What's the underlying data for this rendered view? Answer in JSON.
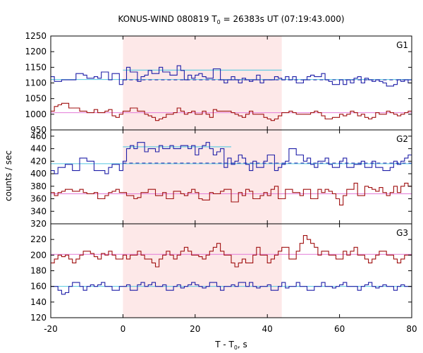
{
  "chart_data": {
    "type": "line",
    "title": "KONUS-WIND 080819 T",
    "title_sub": "0",
    "title_rest": " = 26383s UT (07:19:43.000)",
    "xlabel_main": "T - T",
    "xlabel_sub": "0",
    "xlabel_rest": ", s",
    "ylabel": "counts / sec",
    "xlim": [
      -20,
      80
    ],
    "xticks": [
      -20,
      0,
      20,
      40,
      60,
      80
    ],
    "shade": [
      0,
      44
    ],
    "colors": {
      "blue": "#1f1fa8",
      "red": "#a01010",
      "cyan": "#55c8e0",
      "pink": "#e27ad8",
      "shade": "#fde8e8"
    },
    "panels": [
      {
        "label": "G1",
        "ylim": [
          950,
          1250
        ],
        "yticks": [
          950,
          1000,
          1050,
          1100,
          1150,
          1200,
          1250
        ],
        "step": 2,
        "blue": [
          1120,
          1105,
          1105,
          1110,
          1110,
          1110,
          1110,
          1130,
          1130,
          1125,
          1115,
          1115,
          1120,
          1115,
          1135,
          1135,
          1110,
          1130,
          1130,
          1095,
          1110,
          1150,
          1135,
          1135,
          1105,
          1120,
          1125,
          1140,
          1130,
          1130,
          1150,
          1135,
          1135,
          1125,
          1125,
          1155,
          1140,
          1110,
          1125,
          1115,
          1125,
          1130,
          1120,
          1115,
          1115,
          1145,
          1145,
          1110,
          1100,
          1110,
          1120,
          1110,
          1100,
          1115,
          1110,
          1105,
          1110,
          1125,
          1100,
          1110,
          1110,
          1110,
          1120,
          1115,
          1110,
          1120,
          1110,
          1120,
          1100,
          1100,
          1110,
          1120,
          1125,
          1120,
          1120,
          1130,
          1110,
          1105,
          1095,
          1095,
          1110,
          1095,
          1110,
          1100,
          1115,
          1120,
          1100,
          1115,
          1110,
          1105,
          1110,
          1105,
          1100,
          1090,
          1090,
          1095,
          1110,
          1105,
          1110,
          1100
        ],
        "red": [
          1010,
          1025,
          1030,
          1035,
          1035,
          1020,
          1020,
          1020,
          1010,
          1010,
          1005,
          1005,
          1015,
          1005,
          1005,
          1010,
          1015,
          995,
          990,
          1000,
          1010,
          1010,
          1020,
          1020,
          1010,
          1010,
          1000,
          995,
          990,
          980,
          985,
          990,
          1000,
          1000,
          1005,
          1020,
          1010,
          1000,
          1005,
          1010,
          1000,
          1000,
          1010,
          1000,
          990,
          1015,
          1010,
          1010,
          1010,
          1010,
          1005,
          1000,
          995,
          990,
          1000,
          1010,
          1000,
          1000,
          1000,
          990,
          985,
          980,
          985,
          995,
          1005,
          1005,
          1010,
          1005,
          1000,
          1000,
          1000,
          1000,
          1005,
          1010,
          1005,
          995,
          985,
          985,
          990,
          990,
          1000,
          995,
          1000,
          1010,
          1005,
          995,
          1000,
          990,
          985,
          990,
          1005,
          1000,
          1000,
          1010,
          1005,
          1000,
          995,
          1000,
          1005,
          1010
        ],
        "fit_blue": 1111,
        "fit_red": 1005,
        "fit_burst": [
          0,
          44,
          1141
        ],
        "dashed": [
          0,
          80,
          1110
        ]
      },
      {
        "label": "G2",
        "ylim": [
          320,
          470
        ],
        "yticks": [
          320,
          340,
          360,
          380,
          400,
          420,
          440,
          460
        ],
        "step": 2,
        "blue": [
          405,
          400,
          410,
          410,
          415,
          415,
          405,
          405,
          425,
          425,
          420,
          420,
          405,
          405,
          405,
          400,
          410,
          415,
          415,
          405,
          420,
          440,
          445,
          440,
          450,
          450,
          435,
          440,
          440,
          435,
          445,
          440,
          440,
          445,
          440,
          440,
          445,
          445,
          440,
          445,
          430,
          440,
          445,
          450,
          440,
          430,
          435,
          440,
          410,
          425,
          415,
          420,
          430,
          425,
          415,
          405,
          420,
          410,
          410,
          420,
          430,
          430,
          405,
          410,
          415,
          420,
          440,
          440,
          430,
          430,
          420,
          425,
          415,
          410,
          420,
          420,
          425,
          415,
          410,
          410,
          420,
          425,
          410,
          410,
          415,
          415,
          420,
          410,
          410,
          420,
          410,
          410,
          405,
          405,
          410,
          420,
          415,
          420,
          425,
          430
        ],
        "red": [
          370,
          365,
          370,
          372,
          375,
          375,
          372,
          372,
          375,
          370,
          368,
          368,
          370,
          360,
          360,
          365,
          370,
          372,
          375,
          370,
          370,
          365,
          365,
          360,
          362,
          370,
          370,
          375,
          375,
          365,
          365,
          370,
          360,
          360,
          372,
          372,
          368,
          365,
          370,
          375,
          370,
          360,
          358,
          358,
          370,
          368,
          368,
          372,
          375,
          375,
          355,
          355,
          370,
          365,
          375,
          372,
          360,
          360,
          365,
          370,
          365,
          375,
          380,
          360,
          360,
          375,
          375,
          370,
          370,
          365,
          375,
          375,
          360,
          360,
          375,
          370,
          375,
          372,
          368,
          360,
          350,
          365,
          375,
          375,
          385,
          365,
          365,
          380,
          378,
          375,
          372,
          378,
          370,
          365,
          370,
          380,
          370,
          380,
          385,
          380
        ],
        "fit_blue": 416,
        "fit_red": 368,
        "fit_burst": [
          0,
          30,
          443
        ],
        "dashed": [
          0,
          80,
          417
        ]
      },
      {
        "label": "G3",
        "ylim": [
          120,
          240
        ],
        "yticks": [
          120,
          140,
          160,
          180,
          200,
          220
        ],
        "step": 2,
        "red": [
          190,
          195,
          200,
          198,
          200,
          195,
          190,
          195,
          200,
          205,
          205,
          202,
          198,
          195,
          202,
          200,
          205,
          200,
          195,
          195,
          200,
          195,
          200,
          200,
          205,
          200,
          195,
          195,
          190,
          185,
          195,
          200,
          205,
          200,
          195,
          200,
          205,
          210,
          205,
          200,
          200,
          198,
          195,
          200,
          205,
          210,
          215,
          205,
          200,
          200,
          190,
          185,
          190,
          195,
          190,
          190,
          200,
          210,
          200,
          200,
          190,
          195,
          200,
          205,
          210,
          210,
          195,
          195,
          205,
          215,
          225,
          220,
          215,
          210,
          200,
          205,
          205,
          200,
          200,
          195,
          195,
          205,
          200,
          205,
          210,
          200,
          200,
          195,
          190,
          195,
          200,
          205,
          205,
          200,
          200,
          195,
          190,
          195,
          200,
          200
        ],
        "blue": [
          160,
          160,
          155,
          150,
          152,
          160,
          165,
          165,
          160,
          155,
          160,
          162,
          160,
          162,
          165,
          160,
          160,
          155,
          155,
          160,
          160,
          162,
          155,
          155,
          162,
          165,
          160,
          162,
          165,
          160,
          160,
          162,
          155,
          155,
          160,
          162,
          158,
          160,
          162,
          165,
          162,
          160,
          158,
          160,
          165,
          165,
          160,
          155,
          160,
          160,
          162,
          160,
          165,
          165,
          160,
          165,
          160,
          158,
          160,
          160,
          162,
          155,
          155,
          160,
          165,
          158,
          160,
          160,
          165,
          160,
          160,
          155,
          155,
          160,
          160,
          165,
          160,
          160,
          158,
          160,
          162,
          165,
          160,
          160,
          160,
          155,
          160,
          162,
          165,
          160,
          158,
          160,
          162,
          160,
          160,
          155,
          160,
          162,
          160,
          160
        ],
        "fit_blue": 160,
        "fit_red": 201
      }
    ]
  }
}
